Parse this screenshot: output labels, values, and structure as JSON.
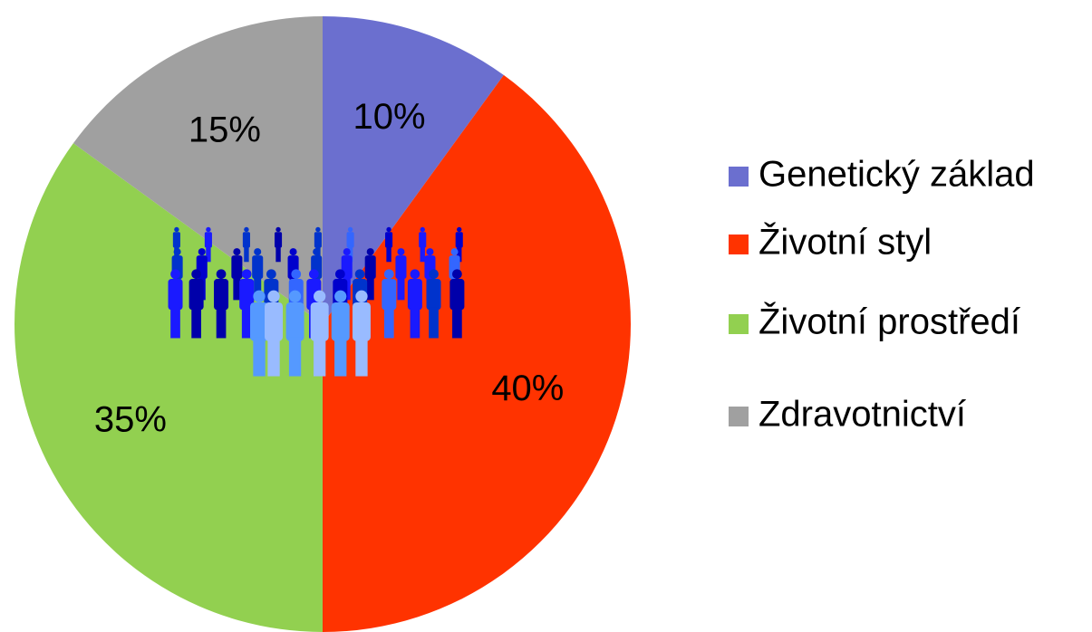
{
  "chart_data": {
    "type": "pie",
    "categories": [
      "Genetický základ",
      "Životní styl",
      "Životní prostředí",
      "Zdravotnictví"
    ],
    "values": [
      10,
      40,
      35,
      15
    ],
    "value_labels": [
      "10%",
      "40%",
      "35%",
      "15%"
    ],
    "colors": [
      "#6b6fcf",
      "#ff3300",
      "#92d050",
      "#a0a0a0"
    ],
    "legend": "right"
  }
}
